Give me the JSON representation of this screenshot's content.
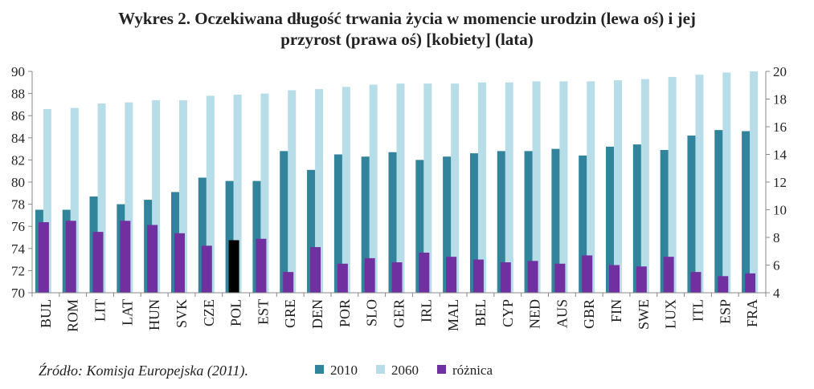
{
  "title": {
    "line1": "Wykres 2. Oczekiwana długość trwania życia w momencie urodzin (lewa oś) i jej",
    "line2": "przyrost (prawa oś) [kobiety] (lata)"
  },
  "source": "Źródło: Komisja Europejska (2011).",
  "colors": {
    "s2010": "#31849b",
    "s2060": "#b7dee8",
    "roznica": "#7030a0",
    "highlight": "#000000"
  },
  "chart_data": {
    "type": "bar",
    "categories": [
      "BUL",
      "ROM",
      "LIT",
      "LAT",
      "HUN",
      "SVK",
      "CZE",
      "POL",
      "EST",
      "GRE",
      "DEN",
      "POR",
      "SLO",
      "GER",
      "IRL",
      "MAL",
      "BEL",
      "CYP",
      "NED",
      "AUS",
      "GBR",
      "FIN",
      "SWE",
      "LUX",
      "ITL",
      "ESP",
      "FRA"
    ],
    "series": [
      {
        "name": "2010",
        "axis": "left",
        "values": [
          77.5,
          77.5,
          78.7,
          78.0,
          78.4,
          79.1,
          80.4,
          80.1,
          80.1,
          82.8,
          81.1,
          82.5,
          82.3,
          82.7,
          82.0,
          82.3,
          82.6,
          82.8,
          82.8,
          83.0,
          82.4,
          83.2,
          83.4,
          82.9,
          84.2,
          84.7,
          84.6
        ]
      },
      {
        "name": "2060",
        "axis": "left",
        "values": [
          86.6,
          86.7,
          87.1,
          87.2,
          87.4,
          87.4,
          87.8,
          87.9,
          88.0,
          88.3,
          88.4,
          88.6,
          88.8,
          88.9,
          88.9,
          88.9,
          89.0,
          89.0,
          89.1,
          89.1,
          89.1,
          89.2,
          89.3,
          89.5,
          89.7,
          89.9,
          90.0
        ]
      },
      {
        "name": "różnica",
        "axis": "right",
        "values": [
          9.1,
          9.2,
          8.4,
          9.2,
          8.9,
          8.3,
          7.4,
          7.8,
          7.9,
          5.5,
          7.3,
          6.1,
          6.5,
          6.2,
          6.9,
          6.6,
          6.4,
          6.2,
          6.3,
          6.1,
          6.7,
          6.0,
          5.9,
          6.6,
          5.5,
          5.2,
          5.4
        ]
      }
    ],
    "highlight_category": "POL",
    "ylim_left": [
      70,
      90
    ],
    "yticks_left": [
      70,
      72,
      74,
      76,
      78,
      80,
      82,
      84,
      86,
      88,
      90
    ],
    "ylim_right": [
      4,
      20
    ],
    "yticks_right": [
      4,
      6,
      8,
      10,
      12,
      14,
      16,
      18,
      20
    ],
    "legend_position": "bottom",
    "grid": false
  }
}
